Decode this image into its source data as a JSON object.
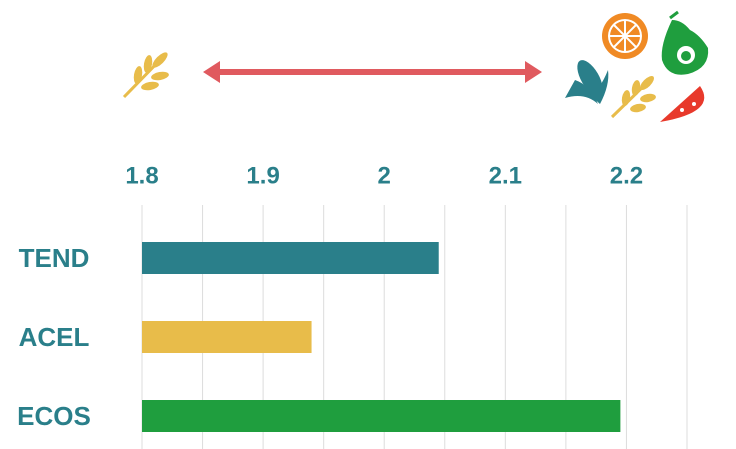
{
  "chart_data": {
    "type": "bar",
    "orientation": "horizontal",
    "categories": [
      "TEND",
      "ACEL",
      "ECOS"
    ],
    "values": [
      2.045,
      1.94,
      2.195
    ],
    "colors": [
      "#2a7f8a",
      "#e8bc4a",
      "#1f9e3e"
    ],
    "xlim": [
      1.8,
      2.25
    ],
    "xticks": [
      1.8,
      1.9,
      2,
      2.1,
      2.2
    ],
    "x_gridlines": [
      1.8,
      1.85,
      1.9,
      1.95,
      2,
      2.05,
      2.1,
      2.15,
      2.2,
      2.25
    ],
    "grid": true
  }
}
